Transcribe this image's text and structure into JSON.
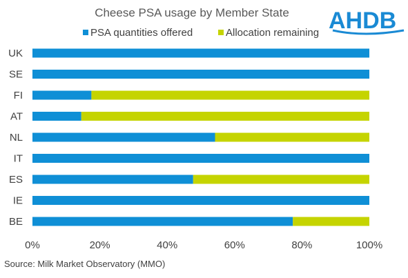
{
  "chart_data": {
    "type": "bar",
    "orientation": "horizontal",
    "stacked": true,
    "title": "Cheese PSA usage by Member State",
    "categories": [
      "UK",
      "SE",
      "FI",
      "AT",
      "NL",
      "IT",
      "ES",
      "IE",
      "BE"
    ],
    "series": [
      {
        "name": "PSA quantities offered",
        "color": "#0f8fd6",
        "values": [
          100,
          100,
          17.5,
          14.5,
          54.2,
          100,
          47.7,
          100,
          77.3
        ]
      },
      {
        "name": "Allocation remaining",
        "color": "#c5d400",
        "values": [
          0,
          0,
          82.5,
          85.5,
          45.8,
          0,
          52.3,
          0,
          22.7
        ]
      }
    ],
    "xlim": [
      0,
      100
    ],
    "x_ticks": [
      "0%",
      "20%",
      "40%",
      "60%",
      "80%",
      "100%"
    ],
    "grid": false,
    "legend_position": "top"
  },
  "source": "Source: Milk Market Observatory (MMO)",
  "logo": {
    "text": "AHDB",
    "color": "#1a8ad4"
  }
}
